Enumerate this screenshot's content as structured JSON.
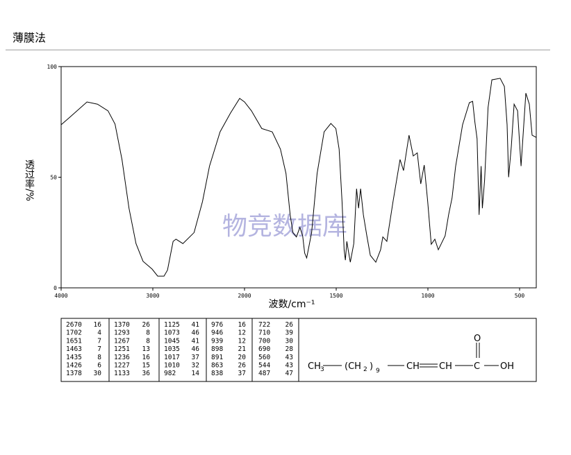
{
  "header": {
    "title": "薄膜法"
  },
  "chart_data": {
    "type": "line",
    "xlabel": "波数/cm⁻¹",
    "ylabel": "透过率/%",
    "watermark": "物竞数据库",
    "xlim": [
      4000,
      400
    ],
    "ylim": [
      0,
      100
    ],
    "xticks": [
      4000,
      3000,
      2000,
      1500,
      1000,
      500
    ],
    "yticks": [
      0,
      50,
      100
    ],
    "color": "#000000",
    "x": [
      4000,
      3908,
      3718,
      3603,
      3489,
      3412,
      3336,
      3260,
      3183,
      3107,
      3008,
      2947,
      2878,
      2840,
      2779,
      2748,
      2672,
      2550,
      2458,
      2382,
      2267,
      2153,
      2053,
      2000,
      1962,
      1906,
      1849,
      1804,
      1774,
      1751,
      1736,
      1717,
      1698,
      1683,
      1672,
      1661,
      1634,
      1604,
      1566,
      1529,
      1502,
      1484,
      1468,
      1457,
      1450,
      1442,
      1435,
      1423,
      1404,
      1389,
      1378,
      1367,
      1352,
      1333,
      1314,
      1284,
      1258,
      1246,
      1224,
      1190,
      1152,
      1133,
      1103,
      1080,
      1058,
      1039,
      1020,
      1001,
      982,
      962,
      943,
      906,
      887,
      868,
      849,
      811,
      774,
      756,
      744,
      732,
      721,
      710,
      703,
      691,
      672,
      651,
      606,
      583,
      568,
      560,
      545,
      530,
      511,
      492,
      466,
      447,
      432,
      409
    ],
    "values": [
      73.7,
      77,
      84,
      83,
      80,
      74,
      58,
      36,
      20,
      12,
      8.5,
      5.3,
      5.3,
      8,
      21,
      22,
      20,
      25,
      39,
      55,
      70.5,
      79,
      85.6,
      84,
      80,
      72,
      70.5,
      62.7,
      51.7,
      33,
      25,
      23,
      27.3,
      23.5,
      15.7,
      13.5,
      25,
      51.7,
      70.5,
      74.3,
      72,
      62.7,
      39,
      17.2,
      12.5,
      21,
      17.2,
      11.6,
      20,
      44.8,
      36,
      44.8,
      33,
      23.5,
      14.7,
      11.6,
      17.2,
      23,
      21,
      39,
      58,
      53,
      69,
      59.6,
      61,
      47,
      55.5,
      39,
      19.7,
      22,
      17.2,
      23.5,
      33,
      40.7,
      54.9,
      73.7,
      83.7,
      84.3,
      75,
      67.4,
      33,
      55,
      36,
      48.6,
      81.5,
      94,
      94.7,
      91,
      73.7,
      50,
      64,
      83,
      80,
      55,
      88,
      83,
      69,
      68
    ]
  },
  "peak_table": {
    "columns": [
      [
        [
          "2670",
          "16"
        ],
        [
          "1702",
          "4"
        ],
        [
          "1651",
          "7"
        ],
        [
          "1463",
          "7"
        ],
        [
          "1435",
          "8"
        ],
        [
          "1426",
          "6"
        ],
        [
          "1378",
          "30"
        ]
      ],
      [
        [
          "1370",
          "26"
        ],
        [
          "1293",
          "8"
        ],
        [
          "1267",
          "8"
        ],
        [
          "1251",
          "13"
        ],
        [
          "1236",
          "16"
        ],
        [
          "1227",
          "15"
        ],
        [
          "1133",
          "36"
        ]
      ],
      [
        [
          "1125",
          "41"
        ],
        [
          "1073",
          "46"
        ],
        [
          "1045",
          "41"
        ],
        [
          "1035",
          "46"
        ],
        [
          "1017",
          "37"
        ],
        [
          "1010",
          "32"
        ],
        [
          "982",
          "14"
        ]
      ],
      [
        [
          "976",
          "16"
        ],
        [
          "946",
          "12"
        ],
        [
          "939",
          "12"
        ],
        [
          "898",
          "21"
        ],
        [
          "891",
          "20"
        ],
        [
          "863",
          "26"
        ],
        [
          "838",
          "37"
        ]
      ],
      [
        [
          "722",
          "26"
        ],
        [
          "710",
          "39"
        ],
        [
          "700",
          "30"
        ],
        [
          "690",
          "28"
        ],
        [
          "560",
          "43"
        ],
        [
          "544",
          "43"
        ],
        [
          "487",
          "47"
        ]
      ]
    ]
  },
  "structure": {
    "labels": [
      "CH",
      "3",
      "(CH",
      "2",
      ")",
      "9",
      "CH",
      "CH",
      "C",
      "O",
      "OH"
    ]
  }
}
